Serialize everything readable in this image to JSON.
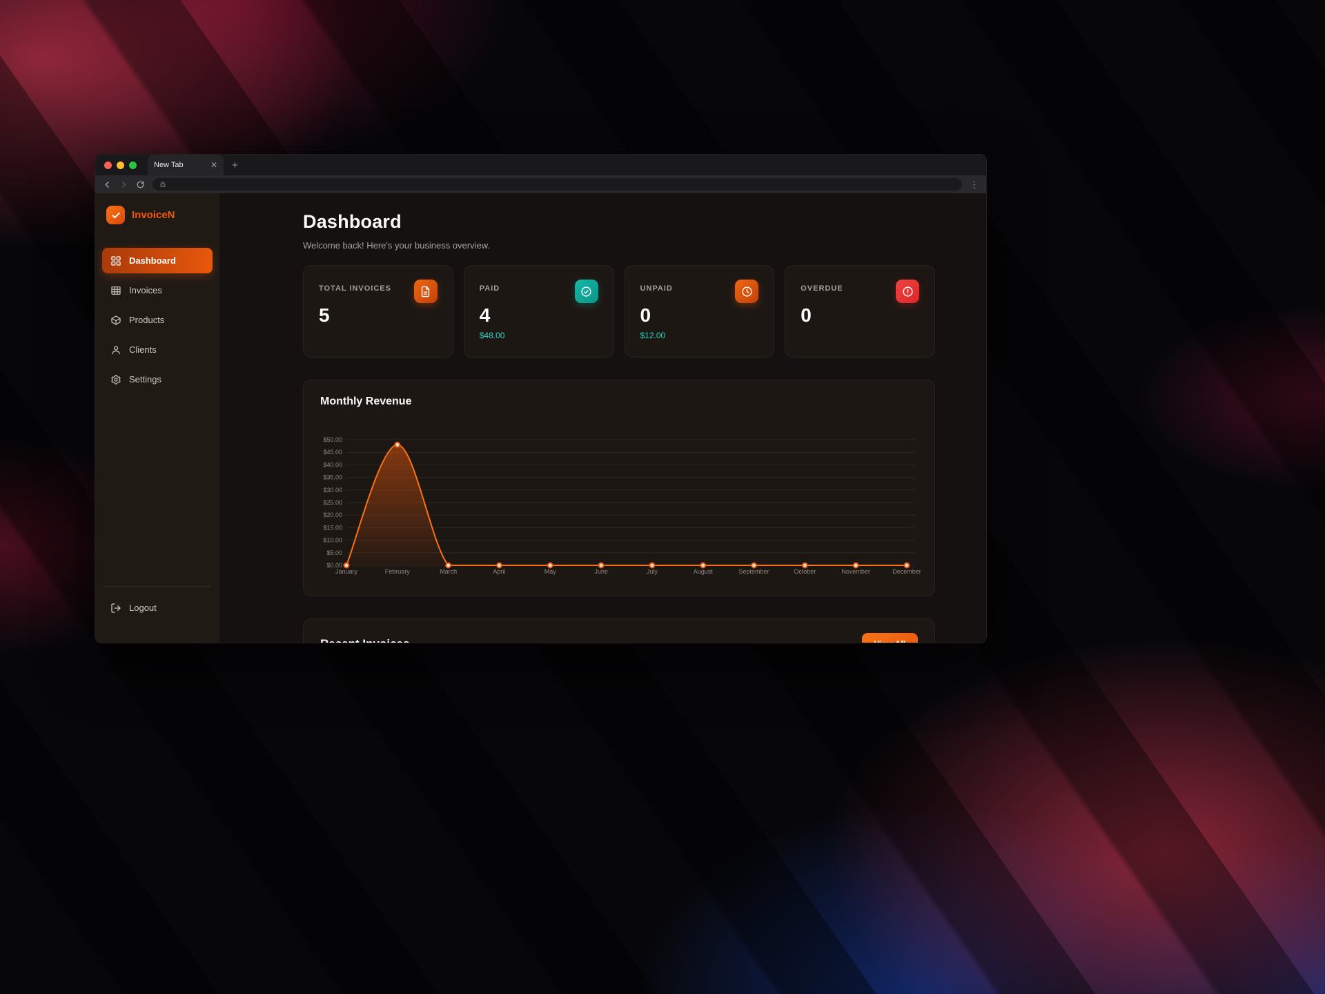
{
  "browser": {
    "tab_title": "New Tab"
  },
  "sidebar": {
    "brand": "InvoiceN",
    "items": [
      {
        "label": "Dashboard",
        "icon": "dashboard-grid-icon",
        "active": true
      },
      {
        "label": "Invoices",
        "icon": "invoice-table-icon",
        "active": false
      },
      {
        "label": "Products",
        "icon": "package-icon",
        "active": false
      },
      {
        "label": "Clients",
        "icon": "user-icon",
        "active": false
      },
      {
        "label": "Settings",
        "icon": "gear-icon",
        "active": false
      }
    ],
    "logout_label": "Logout"
  },
  "header": {
    "title": "Dashboard",
    "subtitle": "Welcome back! Here's your business overview."
  },
  "stats": [
    {
      "label": "TOTAL INVOICES",
      "value": "5",
      "sub": "",
      "icon": "document-icon",
      "tile_color": "#c2410c"
    },
    {
      "label": "PAID",
      "value": "4",
      "sub": "$48.00",
      "icon": "check-circle-icon",
      "tile_color": "#0d9488"
    },
    {
      "label": "UNPAID",
      "value": "0",
      "sub": "$12.00",
      "icon": "clock-icon",
      "tile_color": "#c2410c"
    },
    {
      "label": "OVERDUE",
      "value": "0",
      "sub": "",
      "icon": "alert-circle-icon",
      "tile_color": "#dc2626"
    }
  ],
  "chart_data": {
    "type": "line",
    "title": "Monthly Revenue",
    "categories": [
      "January",
      "February",
      "March",
      "April",
      "May",
      "June",
      "July",
      "August",
      "September",
      "October",
      "November",
      "December"
    ],
    "values": [
      0,
      48,
      0,
      0,
      0,
      0,
      0,
      0,
      0,
      0,
      0,
      0
    ],
    "ylim": [
      0,
      50
    ],
    "tick_step": 5,
    "y_tick_labels": [
      "$0.00",
      "$5.00",
      "$10.00",
      "$15.00",
      "$20.00",
      "$25.00",
      "$30.00",
      "$35.00",
      "$40.00",
      "$45.00",
      "$50.00"
    ],
    "grid": "horizontal",
    "legend": "none",
    "xlabel": "",
    "ylabel": "",
    "line_color": "#f97316",
    "area_color": "#ea580c",
    "point_fill": "#ffe3cf",
    "point_stroke": "#e1560e"
  },
  "recent": {
    "title": "Recent Invoices",
    "view_all_label": "View All"
  },
  "colors": {
    "accent": "#ea580c",
    "paid_teal": "#2dd4bf",
    "overdue_red": "#dc2626"
  }
}
